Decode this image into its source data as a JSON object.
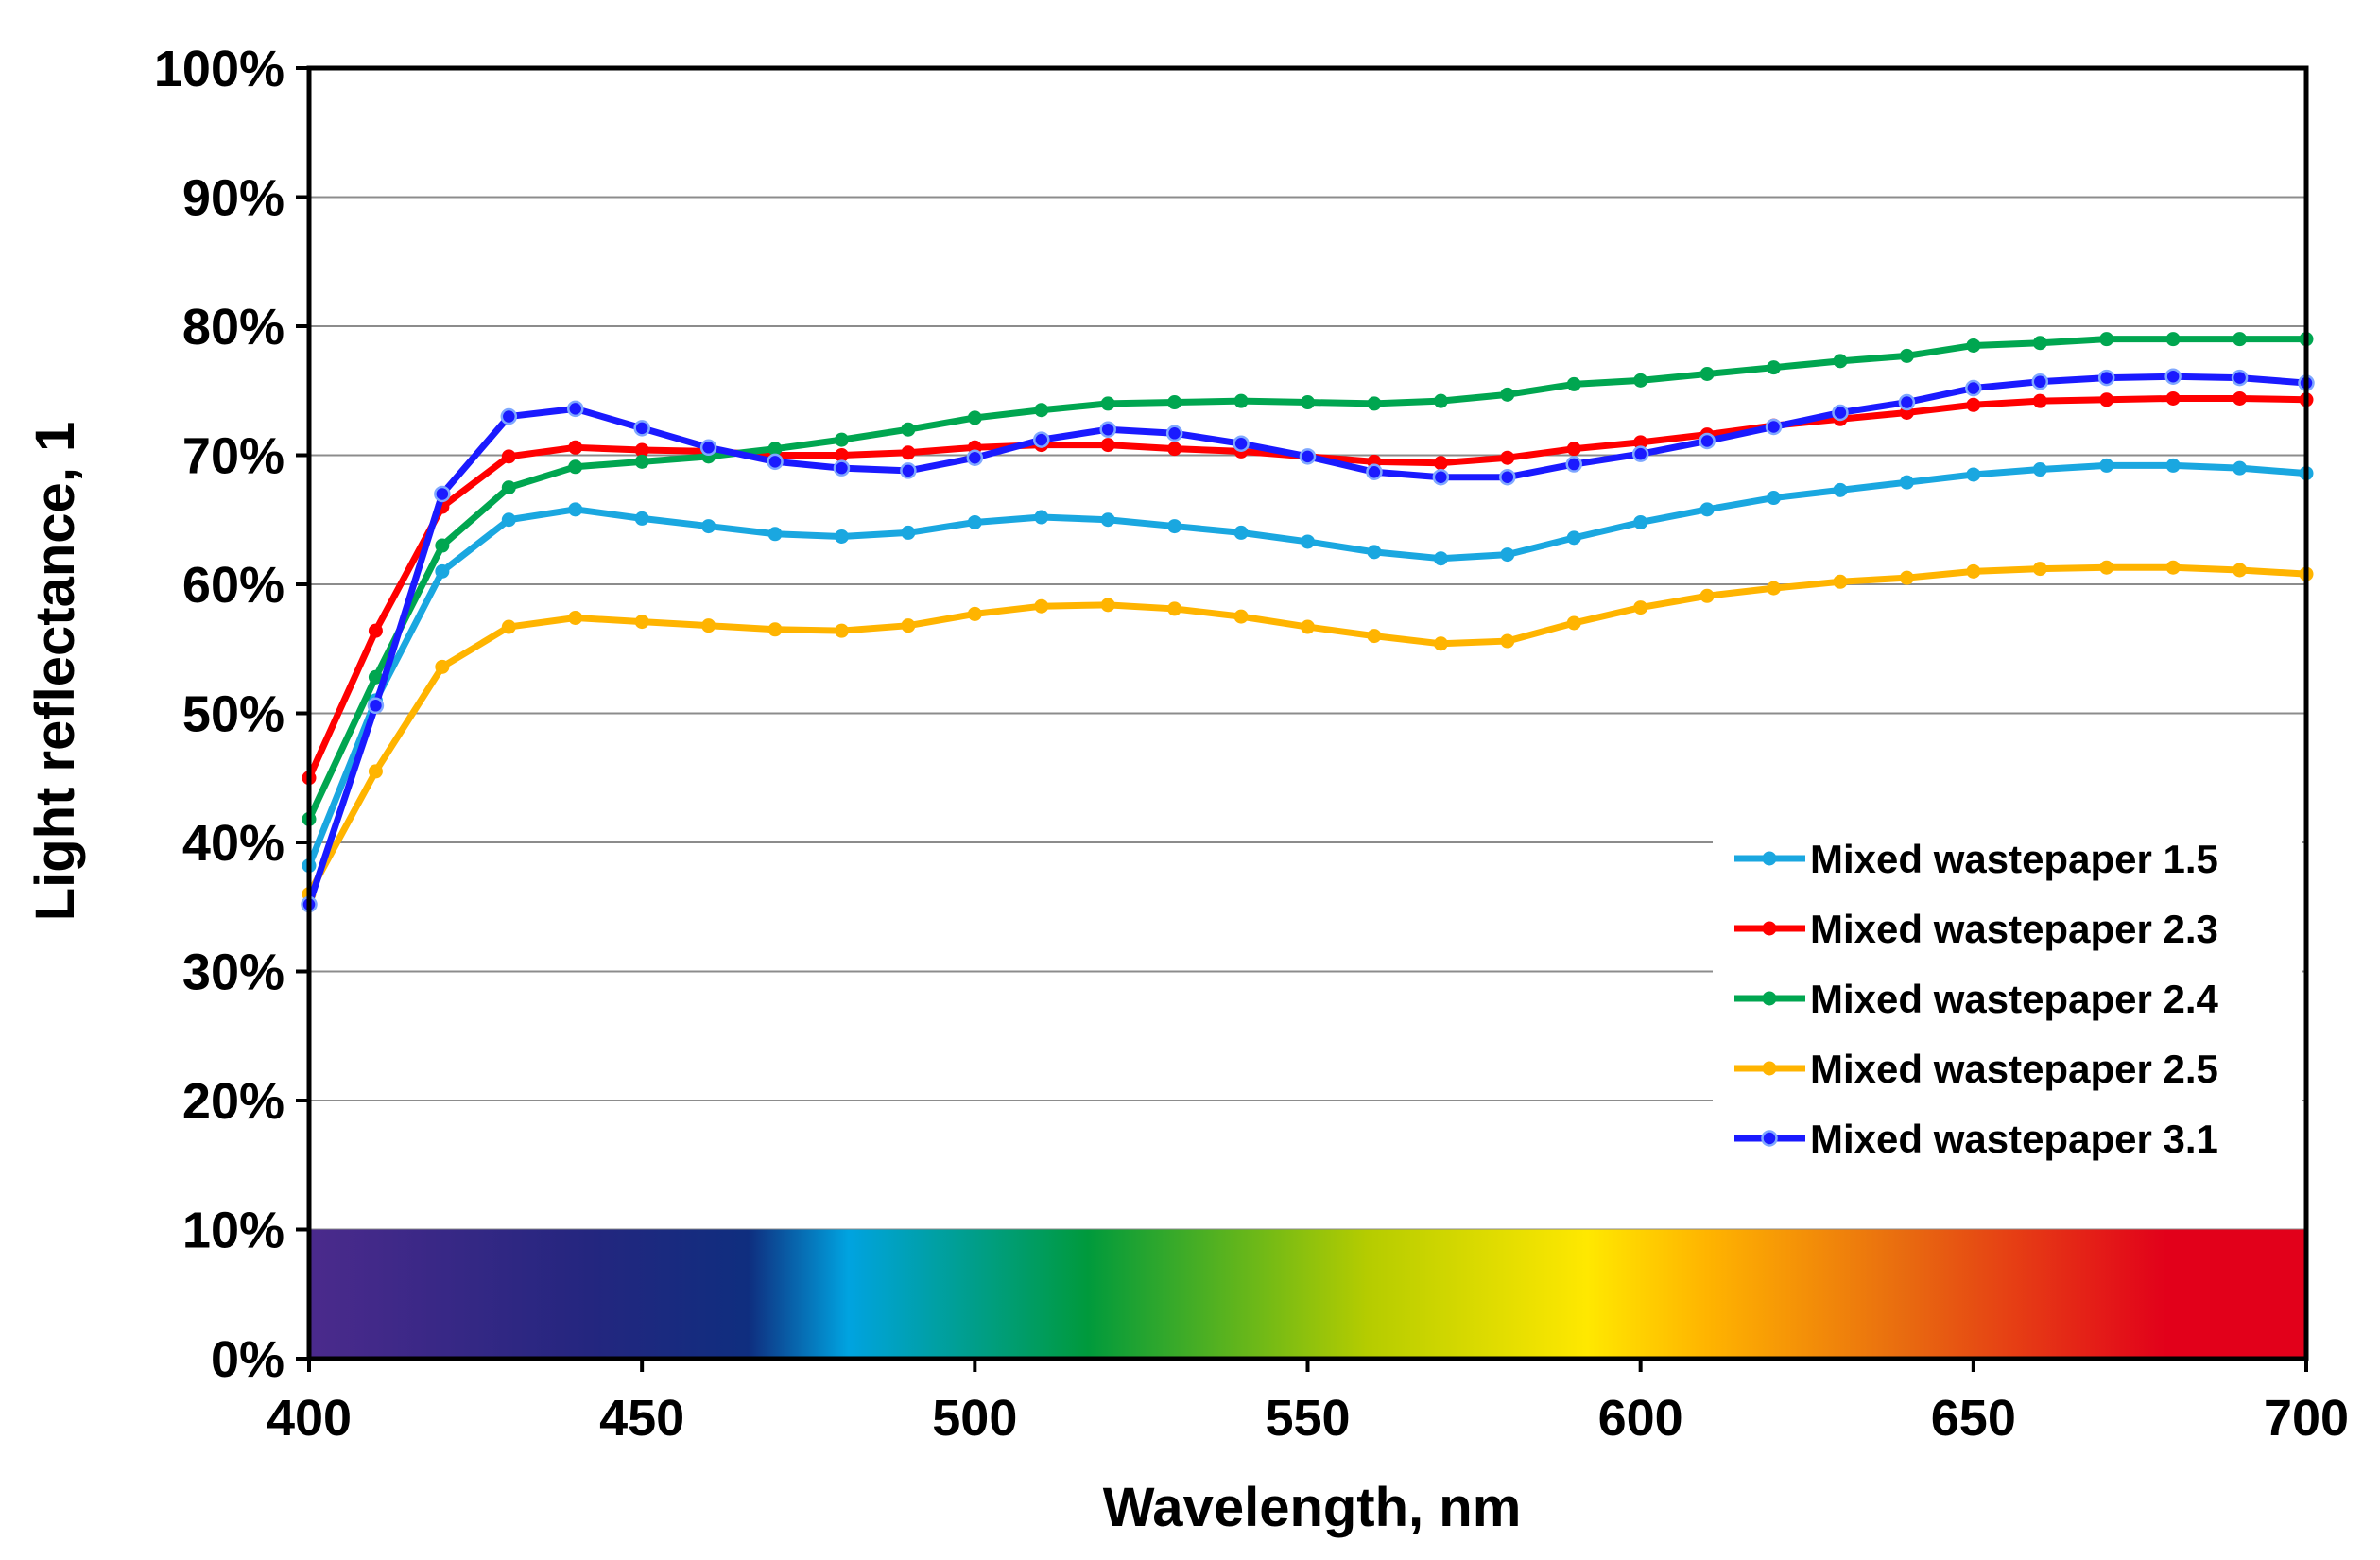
{
  "chart_data": {
    "type": "line",
    "title": "",
    "xlabel": "Wavelength, nm",
    "ylabel": "Light reflectance, 1",
    "xlim": [
      400,
      700
    ],
    "ylim": [
      0,
      100
    ],
    "x_ticks": [
      400,
      450,
      500,
      550,
      600,
      650,
      700
    ],
    "x_tick_labels": [
      "400",
      "450",
      "500",
      "550",
      "600",
      "650",
      "700"
    ],
    "y_ticks": [
      0,
      10,
      20,
      30,
      40,
      50,
      60,
      70,
      80,
      90,
      100
    ],
    "y_tick_labels": [
      "0%",
      "10%",
      "20%",
      "30%",
      "40%",
      "50%",
      "60%",
      "70%",
      "80%",
      "90%",
      "100%"
    ],
    "grid": "horizontal",
    "legend_position": "bottom-right",
    "spectrum_band": {
      "from": 0,
      "to": 10
    },
    "spectrum_colors": [
      "#4b2a8c",
      "#24267f",
      "#0f2e7f",
      "#00a3e0",
      "#009a3c",
      "#b5cc00",
      "#ffe800",
      "#ffb400",
      "#e86a10",
      "#e2001a"
    ],
    "x": [
      400,
      410,
      420,
      430,
      440,
      450,
      460,
      470,
      480,
      490,
      500,
      510,
      520,
      530,
      540,
      550,
      560,
      570,
      580,
      590,
      600,
      610,
      620,
      630,
      640,
      650,
      660,
      670,
      680,
      690,
      700
    ],
    "series": [
      {
        "name": "Mixed wastepaper 1.5",
        "color": "#1aa7e0",
        "values": [
          38.2,
          51.0,
          61.0,
          65.0,
          65.8,
          65.1,
          64.5,
          63.9,
          63.7,
          64.0,
          64.8,
          65.2,
          65.0,
          64.5,
          64.0,
          63.3,
          62.5,
          62.0,
          62.3,
          63.6,
          64.8,
          65.8,
          66.7,
          67.3,
          67.9,
          68.5,
          68.9,
          69.2,
          69.2,
          69.0,
          68.6
        ]
      },
      {
        "name": "Mixed wastepaper 2.3",
        "color": "#ff0000",
        "values": [
          45.0,
          56.4,
          66.0,
          69.9,
          70.6,
          70.4,
          70.3,
          70.0,
          70.0,
          70.2,
          70.6,
          70.8,
          70.8,
          70.5,
          70.3,
          69.9,
          69.5,
          69.4,
          69.8,
          70.5,
          71.0,
          71.6,
          72.3,
          72.8,
          73.3,
          73.9,
          74.2,
          74.3,
          74.4,
          74.4,
          74.3
        ]
      },
      {
        "name": "Mixed wastepaper 2.4",
        "color": "#00a650",
        "values": [
          41.8,
          52.8,
          63.0,
          67.5,
          69.1,
          69.5,
          69.9,
          70.5,
          71.2,
          72.0,
          72.9,
          73.5,
          74.0,
          74.1,
          74.2,
          74.1,
          74.0,
          74.2,
          74.7,
          75.5,
          75.8,
          76.3,
          76.8,
          77.3,
          77.7,
          78.5,
          78.7,
          79.0,
          79.0,
          79.0,
          79.0
        ]
      },
      {
        "name": "Mixed wastepaper 2.5",
        "color": "#ffb400",
        "values": [
          36.0,
          45.5,
          53.6,
          56.7,
          57.4,
          57.1,
          56.8,
          56.5,
          56.4,
          56.8,
          57.7,
          58.3,
          58.4,
          58.1,
          57.5,
          56.7,
          56.0,
          55.4,
          55.6,
          57.0,
          58.2,
          59.1,
          59.7,
          60.2,
          60.5,
          61.0,
          61.2,
          61.3,
          61.3,
          61.1,
          60.8
        ]
      },
      {
        "name": "Mixed wastepaper 3.1",
        "color": "#1a1aff",
        "values": [
          35.2,
          50.6,
          67.0,
          73.0,
          73.6,
          72.1,
          70.6,
          69.5,
          69.0,
          68.8,
          69.8,
          71.2,
          72.0,
          71.7,
          70.9,
          69.9,
          68.7,
          68.3,
          68.3,
          69.3,
          70.1,
          71.1,
          72.2,
          73.3,
          74.1,
          75.2,
          75.7,
          76.0,
          76.1,
          76.0,
          75.6
        ]
      }
    ]
  }
}
